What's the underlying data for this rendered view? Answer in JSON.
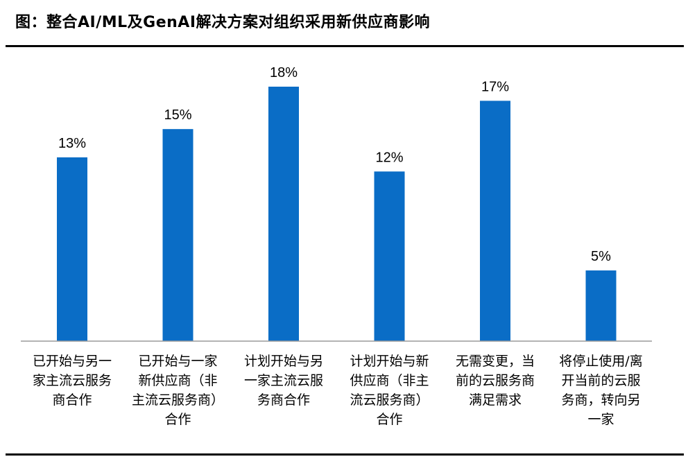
{
  "title": "图：整合AI/ML及GenAI解决方案对组织采用新供应商影响",
  "chart_data": {
    "type": "bar",
    "categories": [
      "已开始与另一家主流云服务商合作",
      "已开始与一家新供应商（非主流云服务商）合作",
      "计划开始与另一家主流云服务商合作",
      "计划开始与新供应商（非主流云服务商）合作",
      "无需变更，当前的云服务商满足需求",
      "将停止使用/离开当前的云服务商，转向另一家"
    ],
    "category_lines": [
      [
        "已开始与另一",
        "家主流云服务",
        "商合作"
      ],
      [
        "已开始与一家",
        "新供应商（非",
        "主流云服务商）",
        "合作"
      ],
      [
        "计划开始与另",
        "一家主流云服",
        "务商合作"
      ],
      [
        "计划开始与新",
        "供应商（非主",
        "流云服务商）",
        "合作"
      ],
      [
        "无需变更，当",
        "前的云服务商",
        "满足需求"
      ],
      [
        "将停止使用/离",
        "开当前的云服",
        "务商，转向另",
        "一家"
      ]
    ],
    "values": [
      13,
      15,
      18,
      12,
      17,
      5
    ],
    "data_labels": [
      "13%",
      "15%",
      "18%",
      "12%",
      "17%",
      "5%"
    ],
    "unit": "%",
    "ylim": [
      0,
      20
    ],
    "bar_color": "#0a6dc6",
    "grid": false,
    "legend": "none"
  }
}
